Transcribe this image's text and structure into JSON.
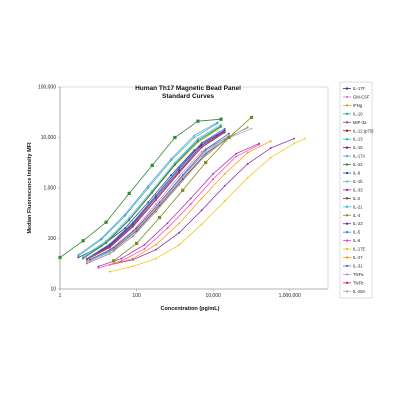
{
  "chart_data": {
    "type": "line",
    "title": "Human Th17 Magnetic Bead Panel",
    "subtitle": "Standard Curves",
    "xlabel": "Concentration (pg/mL)",
    "ylabel": "Median Fluorescence Intensity MFI",
    "x_scale": "log",
    "y_scale": "log",
    "xlim": [
      1,
      10000000
    ],
    "ylim": [
      10,
      100000
    ],
    "x_ticks": [
      "1",
      "100",
      "10,000",
      "1,000,000"
    ],
    "y_ticks": [
      "10",
      "100",
      "1,000",
      "10,000",
      "100,000"
    ],
    "grid": false,
    "legend_position": "right",
    "series": [
      {
        "name": "IL-17F",
        "color": "#1f3c88",
        "x": [
          3,
          12,
          50,
          200,
          800,
          3200,
          13000
        ],
        "y": [
          42,
          70,
          160,
          520,
          1800,
          5600,
          11000
        ]
      },
      {
        "name": "GM-CSF",
        "color": "#e377c2",
        "x": [
          5,
          20,
          80,
          320,
          1300,
          5000,
          20000
        ],
        "y": [
          35,
          60,
          140,
          480,
          1700,
          5200,
          9500
        ]
      },
      {
        "name": "IFNg",
        "color": "#c8b400",
        "x": [
          4,
          16,
          64,
          256,
          1000,
          4000,
          16000
        ],
        "y": [
          40,
          80,
          230,
          800,
          2800,
          8000,
          16000
        ]
      },
      {
        "name": "IL-10",
        "color": "#2ca6a4",
        "x": [
          3,
          12,
          50,
          200,
          800,
          3200,
          13000
        ],
        "y": [
          45,
          95,
          280,
          1000,
          3500,
          10000,
          19000
        ]
      },
      {
        "name": "MIP-3a",
        "color": "#8e44ad",
        "x": [
          5,
          20,
          80,
          320,
          1300,
          5000,
          20000
        ],
        "y": [
          38,
          70,
          180,
          600,
          2100,
          6500,
          13000
        ]
      },
      {
        "name": "IL-12 (p70)",
        "color": "#8b1a1a",
        "x": [
          6,
          25,
          100,
          400,
          1600,
          6400,
          26000
        ],
        "y": [
          36,
          60,
          140,
          450,
          1500,
          4800,
          10000
        ]
      },
      {
        "name": "IL-13",
        "color": "#17becf",
        "x": [
          4,
          16,
          64,
          256,
          1000,
          4000,
          16000
        ],
        "y": [
          42,
          85,
          240,
          850,
          3000,
          9000,
          17000
        ]
      },
      {
        "name": "IL-15",
        "color": "#6a0dad",
        "x": [
          5,
          20,
          80,
          320,
          1300,
          5000,
          20000
        ],
        "y": [
          40,
          75,
          200,
          700,
          2400,
          7500,
          14000
        ]
      },
      {
        "name": "IL-17A",
        "color": "#4aa3df",
        "x": [
          3,
          12,
          50,
          200,
          800,
          3200,
          13000
        ],
        "y": [
          48,
          100,
          300,
          1100,
          3800,
          11000,
          20000
        ]
      },
      {
        "name": "IL-22",
        "color": "#2e7d32",
        "x": [
          4,
          16,
          64,
          256,
          1000,
          4000,
          16000
        ],
        "y": [
          40,
          82,
          230,
          820,
          2900,
          8500,
          16500
        ]
      },
      {
        "name": "IL-9",
        "color": "#3949ab",
        "x": [
          6,
          25,
          100,
          400,
          1600,
          6400,
          26000
        ],
        "y": [
          38,
          65,
          160,
          520,
          1800,
          5800,
          12000
        ]
      },
      {
        "name": "IL-1b",
        "color": "#7fb3d5",
        "x": [
          4,
          16,
          64,
          256,
          1000,
          4000,
          16000
        ],
        "y": [
          44,
          90,
          260,
          900,
          3200,
          9500,
          18000
        ]
      },
      {
        "name": "IL-33",
        "color": "#9c27b0",
        "x": [
          10,
          40,
          160,
          640,
          2600,
          10000,
          40000,
          160000
        ],
        "y": [
          28,
          40,
          75,
          200,
          620,
          1900,
          4800,
          7600
        ]
      },
      {
        "name": "IL-2",
        "color": "#5d4037",
        "x": [
          5,
          20,
          80,
          320,
          1300,
          5000,
          20000
        ],
        "y": [
          40,
          72,
          190,
          650,
          2200,
          7000,
          13500
        ]
      },
      {
        "name": "IL-21",
        "color": "#26c6da",
        "x": [
          6,
          25,
          100,
          400,
          1600,
          6400,
          26000
        ],
        "y": [
          36,
          62,
          150,
          490,
          1700,
          5400,
          11000
        ]
      },
      {
        "name": "IL-4",
        "color": "#7d8c1a",
        "x": [
          5,
          20,
          80,
          320,
          1300,
          5000,
          20000,
          80000
        ],
        "y": [
          32,
          50,
          110,
          340,
          1150,
          3700,
          9000,
          16000
        ]
      },
      {
        "name": "IL-23",
        "color": "#7b1fa2",
        "x": [
          20,
          80,
          320,
          1300,
          5000,
          20000,
          80000,
          320000,
          1300000
        ],
        "y": [
          30,
          38,
          60,
          130,
          360,
          1100,
          3000,
          6200,
          9500
        ]
      },
      {
        "name": "IL-5",
        "color": "#1e88e5",
        "x": [
          5,
          20,
          80,
          320,
          1300,
          5000,
          20000
        ],
        "y": [
          40,
          78,
          210,
          720,
          2500,
          7800,
          15000
        ]
      },
      {
        "name": "IL-6",
        "color": "#ff33cc",
        "x": [
          10,
          40,
          160,
          640,
          2600,
          10000,
          40000,
          160000
        ],
        "y": [
          26,
          36,
          62,
          160,
          480,
          1500,
          4200,
          7200
        ]
      },
      {
        "name": "IL-17E",
        "color": "#f2c200",
        "x": [
          20,
          80,
          320,
          1300,
          5000,
          20000,
          80000,
          320000,
          1300000,
          2500000
        ],
        "y": [
          22,
          28,
          40,
          75,
          190,
          550,
          1600,
          4000,
          7600,
          9500
        ]
      },
      {
        "name": "IL-27",
        "color": "#ff9800",
        "x": [
          20,
          80,
          320,
          1300,
          5000,
          20000,
          80000,
          320000
        ],
        "y": [
          30,
          40,
          75,
          200,
          620,
          1900,
          5000,
          8500
        ]
      },
      {
        "name": "IL-31",
        "color": "#5c6bc0",
        "x": [
          5,
          20,
          80,
          320,
          1300,
          5000,
          20000
        ],
        "y": [
          38,
          68,
          175,
          590,
          2050,
          6400,
          12800
        ]
      },
      {
        "name": "TNFa",
        "color": "#b39ddb",
        "x": [
          6,
          25,
          100,
          400,
          1600,
          6400,
          26000,
          100000
        ],
        "y": [
          34,
          55,
          130,
          420,
          1400,
          4500,
          9800,
          15000
        ]
      },
      {
        "name": "TNFb",
        "color": "#d81b60",
        "x": [
          5,
          20,
          80,
          320,
          1300,
          5000,
          20000
        ],
        "y": [
          38,
          66,
          170,
          570,
          2000,
          6300,
          12500
        ]
      },
      {
        "name": "IL-28A",
        "color": "#a9a9a9",
        "x": [
          5,
          20,
          80,
          320,
          1300,
          5000,
          20000,
          80000
        ],
        "y": [
          34,
          54,
          125,
          400,
          1350,
          4300,
          9500,
          15500
        ]
      }
    ],
    "highlight_series": [
      {
        "name": "IL-10 markers",
        "color": "#2e8b2e",
        "x": [
          1,
          4,
          16,
          64,
          256,
          1000,
          4000,
          16000
        ],
        "y": [
          42,
          90,
          210,
          780,
          2800,
          10000,
          21000,
          23000
        ]
      },
      {
        "name": "IL-4 markers",
        "color": "#7d8c1a",
        "x": [
          25,
          100,
          400,
          1600,
          6400,
          26000,
          100000
        ],
        "y": [
          36,
          80,
          260,
          900,
          3200,
          10000,
          25000
        ]
      }
    ]
  }
}
